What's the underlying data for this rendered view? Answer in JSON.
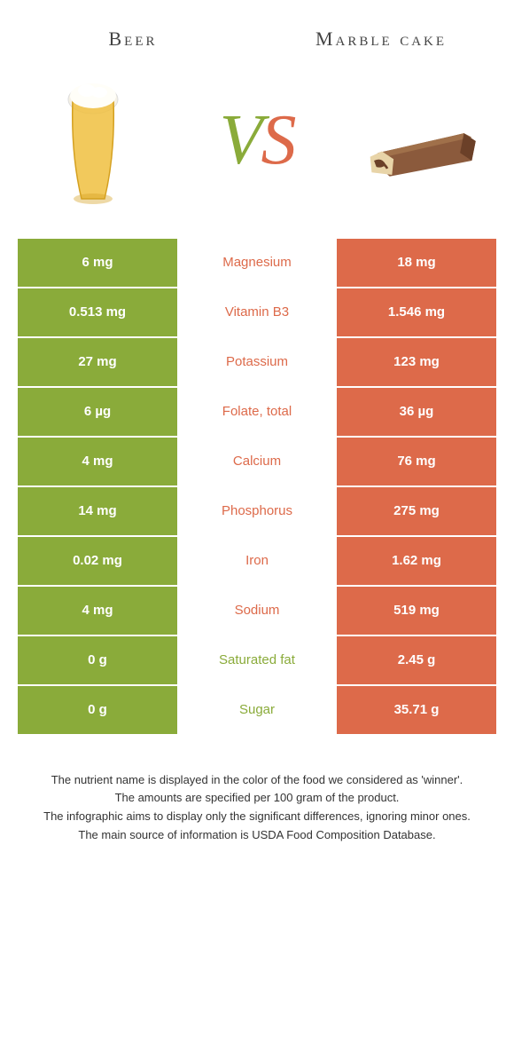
{
  "colors": {
    "left": "#8aab3a",
    "right": "#dd6a4a",
    "background": "#ffffff"
  },
  "header": {
    "left_label": "Beer",
    "right_label": "Marble cake"
  },
  "vs": {
    "v": "V",
    "s": "S"
  },
  "rows": [
    {
      "left": "6 mg",
      "mid": "Magnesium",
      "right": "18 mg",
      "winner": "right"
    },
    {
      "left": "0.513 mg",
      "mid": "Vitamin B3",
      "right": "1.546 mg",
      "winner": "right"
    },
    {
      "left": "27 mg",
      "mid": "Potassium",
      "right": "123 mg",
      "winner": "right"
    },
    {
      "left": "6 µg",
      "mid": "Folate, total",
      "right": "36 µg",
      "winner": "right"
    },
    {
      "left": "4 mg",
      "mid": "Calcium",
      "right": "76 mg",
      "winner": "right"
    },
    {
      "left": "14 mg",
      "mid": "Phosphorus",
      "right": "275 mg",
      "winner": "right"
    },
    {
      "left": "0.02 mg",
      "mid": "Iron",
      "right": "1.62 mg",
      "winner": "right"
    },
    {
      "left": "4 mg",
      "mid": "Sodium",
      "right": "519 mg",
      "winner": "right"
    },
    {
      "left": "0 g",
      "mid": "Saturated fat",
      "right": "2.45 g",
      "winner": "left"
    },
    {
      "left": "0 g",
      "mid": "Sugar",
      "right": "35.71 g",
      "winner": "left"
    }
  ],
  "footer": {
    "line1": "The nutrient name is displayed in the color of the food we considered as 'winner'.",
    "line2": "The amounts are specified per 100 gram of the product.",
    "line3": "The infographic aims to display only the significant differences, ignoring minor ones.",
    "line4": "The main source of information is USDA Food Composition Database."
  }
}
